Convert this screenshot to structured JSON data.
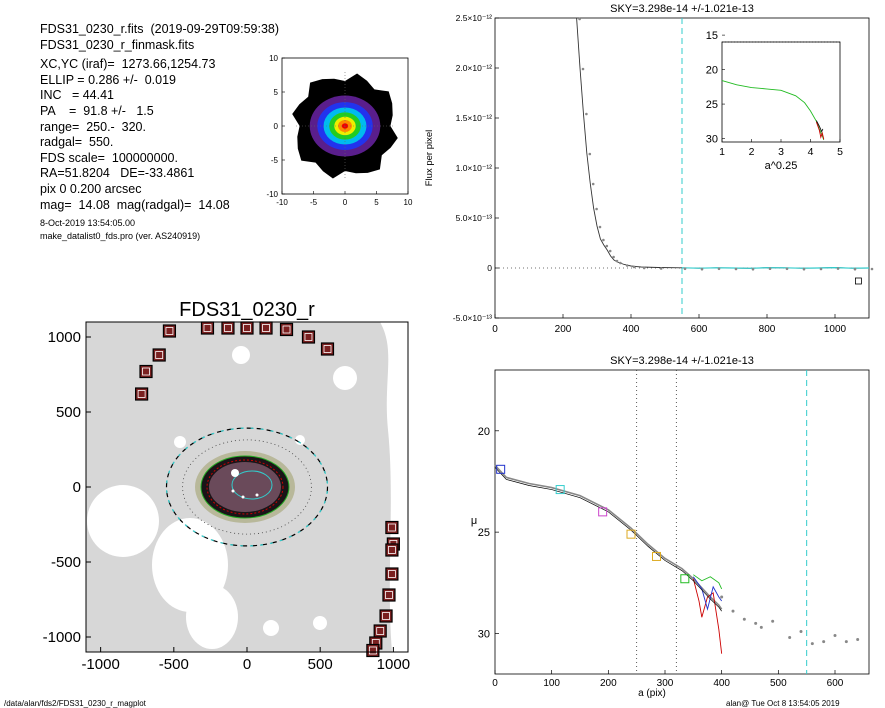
{
  "header": {
    "lines": [
      "FDS31_0230_r.fits  (2019-09-29T09:59:38)",
      "FDS31_0230_r_finmask.fits"
    ],
    "params": [
      "XC,YC (iraf)=  1273.66,1254.73",
      "ELLIP = 0.286 +/-  0.019",
      "INC   = 44.41",
      "PA    =  91.8 +/-   1.5",
      "range=  250.-  320.",
      "radgal=  550.",
      "FDS scale=  100000000.",
      "RA=51.8204   DE=-33.4861",
      "pix 0 0.200 arcsec",
      "mag=  14.08  mag(radgal)=  14.08"
    ],
    "date": "8-Oct-2019 13:54:05.00",
    "program": "make_datalist0_fds.pro (ver. AS240919)"
  },
  "footer": {
    "left": "/data/alan/fds2/FDS31_0230_r_magplot",
    "right": "alan@  Tue Oct  8 13:54:05 2019"
  },
  "colors": {
    "red": "#cc0000",
    "cyan": "#33cccc",
    "green": "#22bb22",
    "blue": "#2233cc",
    "gray": "#888888"
  },
  "chart_data": [
    {
      "type": "heatmap",
      "id": "thumbnail",
      "xlim": [
        -10,
        10
      ],
      "ylim": [
        -10,
        10
      ],
      "xticks": [
        "-10",
        "-5",
        "0",
        "5",
        "10"
      ],
      "yticks": [
        "10",
        "5",
        "0",
        "-5",
        "-10"
      ],
      "colormap": [
        "#000000",
        "#5a1e8c",
        "#2233ee",
        "#00bbee",
        "#22cc22",
        "#eeee00",
        "#ff8800",
        "#ee0000"
      ]
    },
    {
      "type": "heatmap",
      "id": "galaxy-image",
      "title": "FDS31_0230_r",
      "xlim": [
        -1100,
        1100
      ],
      "ylim": [
        -1100,
        1100
      ],
      "xticks": [
        "-1000",
        "-500",
        "0",
        "500",
        "1000"
      ],
      "yticks": [
        "1000",
        "500",
        "0",
        "-500",
        "-1000"
      ],
      "ellipse_outer_a": 550,
      "ellipse_ellip": 0.286,
      "masked_boxes": [
        [
          -530,
          1040
        ],
        [
          -270,
          1060
        ],
        [
          -130,
          1060
        ],
        [
          0,
          1060
        ],
        [
          130,
          1060
        ],
        [
          270,
          1050
        ],
        [
          420,
          1000
        ],
        [
          550,
          920
        ],
        [
          -600,
          880
        ],
        [
          -690,
          770
        ],
        [
          -720,
          620
        ],
        [
          990,
          -270
        ],
        [
          1000,
          -380
        ],
        [
          990,
          -420
        ],
        [
          990,
          -580
        ],
        [
          970,
          -720
        ],
        [
          950,
          -860
        ],
        [
          910,
          -960
        ],
        [
          880,
          -1040
        ],
        [
          860,
          -1090
        ]
      ]
    },
    {
      "type": "line",
      "id": "flux-profile",
      "title": "SKY=3.298e-14 +/-1.021e-13",
      "ylabel": "Flux per pixel",
      "xlim": [
        0,
        1100
      ],
      "xticks": [
        "0",
        "200",
        "400",
        "600",
        "800",
        "1000"
      ],
      "yticks": [
        "-5.0×10⁻¹³",
        "0",
        "5.0×10⁻¹³",
        "1.0×10⁻¹²",
        "1.5×10⁻¹²",
        "2.0×10⁻¹²",
        "2.5×10⁻¹²"
      ],
      "ylim_e13": [
        -5,
        25
      ],
      "cyan_vline": 550,
      "series": [
        {
          "values": [
            [
              240,
              25
            ],
            [
              250,
              20
            ],
            [
              260,
              15.5
            ],
            [
              270,
              11.5
            ],
            [
              280,
              8.5
            ],
            [
              290,
              6
            ],
            [
              300,
              4.2
            ],
            [
              310,
              2.9
            ],
            [
              320,
              2.3
            ],
            [
              330,
              1.8
            ],
            [
              340,
              1.2
            ],
            [
              350,
              0.8
            ],
            [
              360,
              0.6
            ],
            [
              380,
              0.35
            ],
            [
              400,
              0.2
            ],
            [
              430,
              0.1
            ],
            [
              480,
              0.05
            ],
            [
              550,
              0.02
            ],
            [
              600,
              -0.02
            ],
            [
              650,
              0.02
            ],
            [
              700,
              0.0
            ],
            [
              750,
              -0.03
            ],
            [
              800,
              0.03
            ],
            [
              850,
              0.02
            ],
            [
              900,
              -0.02
            ],
            [
              950,
              0.0
            ],
            [
              1000,
              0.04
            ],
            [
              1050,
              -0.02
            ],
            [
              1100,
              0.0
            ]
          ]
        }
      ]
    },
    {
      "type": "line",
      "id": "inset-profile",
      "xlabel": "a^0.25",
      "xlim": [
        1,
        5
      ],
      "ylim": [
        30.5,
        16
      ],
      "xticks": [
        "1",
        "2",
        "3",
        "4",
        "5"
      ],
      "yticks": [
        "15",
        "20",
        "25",
        "30"
      ],
      "series": [
        {
          "values": [
            [
              1.0,
              21.6
            ],
            [
              1.5,
              22.2
            ],
            [
              2.0,
              22.6
            ],
            [
              2.5,
              22.8
            ],
            [
              3.0,
              23.0
            ],
            [
              3.5,
              23.8
            ],
            [
              3.8,
              24.8
            ],
            [
              4.0,
              26.0
            ],
            [
              4.2,
              27.5
            ],
            [
              4.3,
              28.6
            ],
            [
              4.4,
              29.6
            ],
            [
              4.45,
              30.2
            ]
          ]
        }
      ]
    },
    {
      "type": "line",
      "id": "sb-profile",
      "title": "SKY=3.298e-14 +/-1.021e-13",
      "xlabel": "a (pix)",
      "ylabel": "μ",
      "xlim": [
        0,
        660
      ],
      "ylim": [
        32,
        17
      ],
      "xticks": [
        "0",
        "100",
        "200",
        "300",
        "400",
        "500",
        "600"
      ],
      "yticks": [
        "20",
        "25",
        "30"
      ],
      "dotted_vlines": [
        250,
        320
      ],
      "cyan_vline": 550,
      "series": [
        {
          "values": [
            [
              0,
              21.7
            ],
            [
              20,
              22.3
            ],
            [
              60,
              22.6
            ],
            [
              100,
              22.8
            ],
            [
              150,
              23.2
            ],
            [
              200,
              23.9
            ],
            [
              240,
              24.8
            ],
            [
              270,
              25.6
            ],
            [
              300,
              26.3
            ],
            [
              330,
              26.8
            ],
            [
              350,
              27.3
            ],
            [
              370,
              27.9
            ],
            [
              380,
              28.2
            ],
            [
              395,
              28.6
            ],
            [
              400,
              28.8
            ]
          ]
        },
        {
          "values": [
            [
              350,
              27.3
            ],
            [
              360,
              28.4
            ],
            [
              365,
              29.2
            ],
            [
              375,
              28.2
            ],
            [
              385,
              28.0
            ],
            [
              395,
              29.8
            ],
            [
              400,
              31.0
            ]
          ]
        },
        {
          "values": [
            [
              350,
              27.2
            ],
            [
              365,
              27.8
            ],
            [
              375,
              28.8
            ],
            [
              385,
              27.7
            ],
            [
              395,
              28.2
            ],
            [
              400,
              28.4
            ]
          ]
        },
        {
          "values": [
            [
              350,
              27.1
            ],
            [
              365,
              27.4
            ],
            [
              380,
              27.2
            ],
            [
              395,
              27.5
            ],
            [
              400,
              27.8
            ]
          ]
        }
      ],
      "scatter": [
        [
          400,
          28.2
        ],
        [
          420,
          28.9
        ],
        [
          440,
          29.3
        ],
        [
          460,
          29.5
        ],
        [
          470,
          29.7
        ],
        [
          490,
          29.4
        ],
        [
          520,
          30.2
        ],
        [
          540,
          29.9
        ],
        [
          560,
          30.5
        ],
        [
          580,
          30.4
        ],
        [
          600,
          30.1
        ],
        [
          620,
          30.4
        ],
        [
          640,
          30.3
        ]
      ]
    }
  ]
}
